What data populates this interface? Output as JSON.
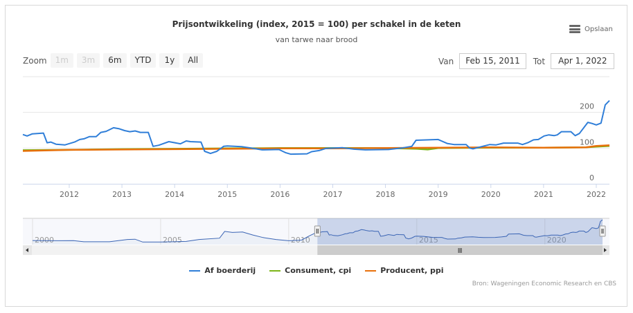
{
  "header": {
    "title": "Prijsontwikkeling (index, 2015 = 100) per schakel in de keten",
    "subtitle": "van tarwe naar brood",
    "save_label": "Opslaan"
  },
  "zoom": {
    "label": "Zoom",
    "buttons": [
      {
        "label": "1m",
        "disabled": true
      },
      {
        "label": "3m",
        "disabled": true
      },
      {
        "label": "6m",
        "disabled": false
      },
      {
        "label": "YTD",
        "disabled": false
      },
      {
        "label": "1y",
        "disabled": false
      },
      {
        "label": "All",
        "disabled": false
      }
    ]
  },
  "range": {
    "from_label": "Van",
    "from_value": "Feb 15, 2011",
    "to_label": "Tot",
    "to_value": "Apr 1, 2022"
  },
  "credits": "Bron: Wageningen Economic Research en CBS",
  "colors": {
    "af_boerderij": "#2f7ed8",
    "consument": "#7cb518",
    "producent": "#e8700b"
  },
  "chart_data": {
    "type": "line",
    "title": "Prijsontwikkeling (index, 2015 = 100) per schakel in de keten",
    "subtitle": "van tarwe naar brood",
    "xlim": [
      2011.12,
      2022.25
    ],
    "ylim": [
      0,
      300
    ],
    "x_ticks": [
      "2012",
      "2013",
      "2014",
      "2015",
      "2016",
      "2017",
      "2018",
      "2019",
      "2020",
      "2021",
      "2022"
    ],
    "y_ticks": [
      "0",
      "100",
      "200"
    ],
    "grid": true,
    "legend_position": "bottom",
    "series": [
      {
        "name": "Af boerderij",
        "color": "#2f7ed8",
        "points": [
          [
            2011.12,
            138
          ],
          [
            2011.2,
            134
          ],
          [
            2011.3,
            140
          ],
          [
            2011.51,
            142
          ],
          [
            2011.58,
            115
          ],
          [
            2011.65,
            117
          ],
          [
            2011.75,
            111
          ],
          [
            2011.92,
            109
          ],
          [
            2012.1,
            117
          ],
          [
            2012.2,
            124
          ],
          [
            2012.28,
            126
          ],
          [
            2012.38,
            132
          ],
          [
            2012.51,
            132
          ],
          [
            2012.6,
            144
          ],
          [
            2012.7,
            147
          ],
          [
            2012.84,
            157
          ],
          [
            2012.95,
            154
          ],
          [
            2013.05,
            149
          ],
          [
            2013.15,
            146
          ],
          [
            2013.25,
            148
          ],
          [
            2013.35,
            144
          ],
          [
            2013.5,
            144
          ],
          [
            2013.59,
            105
          ],
          [
            2013.7,
            108
          ],
          [
            2013.89,
            118
          ],
          [
            2014.11,
            112
          ],
          [
            2014.22,
            120
          ],
          [
            2014.3,
            118
          ],
          [
            2014.5,
            117
          ],
          [
            2014.57,
            91
          ],
          [
            2014.68,
            85
          ],
          [
            2014.8,
            91
          ],
          [
            2014.93,
            105
          ],
          [
            2015.0,
            106
          ],
          [
            2015.27,
            104
          ],
          [
            2015.45,
            100
          ],
          [
            2015.66,
            95
          ],
          [
            2015.98,
            96
          ],
          [
            2016.11,
            87
          ],
          [
            2016.2,
            83
          ],
          [
            2016.51,
            84
          ],
          [
            2016.6,
            90
          ],
          [
            2016.74,
            93
          ],
          [
            2016.87,
            99
          ],
          [
            2017.18,
            101
          ],
          [
            2017.4,
            97
          ],
          [
            2017.62,
            95
          ],
          [
            2018.06,
            96
          ],
          [
            2018.3,
            100
          ],
          [
            2018.5,
            105
          ],
          [
            2018.58,
            122
          ],
          [
            2019.0,
            124
          ],
          [
            2019.17,
            113
          ],
          [
            2019.3,
            110
          ],
          [
            2019.53,
            110
          ],
          [
            2019.6,
            100
          ],
          [
            2019.66,
            98
          ],
          [
            2019.98,
            110
          ],
          [
            2020.1,
            109
          ],
          [
            2020.24,
            114
          ],
          [
            2020.51,
            114
          ],
          [
            2020.6,
            110
          ],
          [
            2020.7,
            115
          ],
          [
            2020.81,
            123
          ],
          [
            2020.9,
            124
          ],
          [
            2021.01,
            134
          ],
          [
            2021.1,
            137
          ],
          [
            2021.2,
            135
          ],
          [
            2021.26,
            137
          ],
          [
            2021.34,
            146
          ],
          [
            2021.52,
            146
          ],
          [
            2021.6,
            135
          ],
          [
            2021.68,
            141
          ],
          [
            2021.84,
            172
          ],
          [
            2021.92,
            169
          ],
          [
            2022.0,
            165
          ],
          [
            2022.09,
            170
          ],
          [
            2022.17,
            221
          ],
          [
            2022.25,
            233
          ]
        ]
      },
      {
        "name": "Consument, cpi",
        "color": "#7cb518",
        "points": [
          [
            2011.12,
            94
          ],
          [
            2012.0,
            95
          ],
          [
            2013.0,
            97
          ],
          [
            2014.0,
            98
          ],
          [
            2015.0,
            99
          ],
          [
            2016.0,
            100
          ],
          [
            2017.0,
            100
          ],
          [
            2018.0,
            100
          ],
          [
            2018.6,
            98
          ],
          [
            2018.8,
            96
          ],
          [
            2019.0,
            100
          ],
          [
            2020.0,
            101
          ],
          [
            2021.0,
            101
          ],
          [
            2021.8,
            102
          ],
          [
            2022.0,
            104
          ],
          [
            2022.25,
            106
          ]
        ]
      },
      {
        "name": "Producent, ppi",
        "color": "#e8700b",
        "points": [
          [
            2011.12,
            92
          ],
          [
            2012.0,
            95
          ],
          [
            2013.0,
            96
          ],
          [
            2014.0,
            97
          ],
          [
            2015.0,
            98
          ],
          [
            2016.0,
            99
          ],
          [
            2017.0,
            99
          ],
          [
            2018.0,
            100
          ],
          [
            2019.0,
            101
          ],
          [
            2020.0,
            102
          ],
          [
            2021.0,
            101
          ],
          [
            2021.8,
            102
          ],
          [
            2022.0,
            106
          ],
          [
            2022.25,
            108
          ]
        ]
      }
    ],
    "navigator": {
      "xlim": [
        2000,
        2022.25
      ],
      "ylim": [
        40,
        245
      ],
      "x_ticks": [
        "2000",
        "2005",
        "2010",
        "2015",
        "2020"
      ],
      "selected_range": [
        2011.12,
        2022.25
      ],
      "points_before_2011": [
        [
          2000,
          72
        ],
        [
          2001,
          70
        ],
        [
          2001.6,
          71
        ],
        [
          2002,
          62
        ],
        [
          2003,
          62
        ],
        [
          2003.7,
          80
        ],
        [
          2004,
          82
        ],
        [
          2004.3,
          60
        ],
        [
          2005,
          60
        ],
        [
          2006,
          65
        ],
        [
          2006.5,
          80
        ],
        [
          2007.3,
          90
        ],
        [
          2007.5,
          143
        ],
        [
          2007.8,
          135
        ],
        [
          2008.2,
          138
        ],
        [
          2008.6,
          115
        ],
        [
          2009,
          95
        ],
        [
          2009.5,
          80
        ],
        [
          2010,
          70
        ],
        [
          2010.5,
          75
        ],
        [
          2010.8,
          108
        ]
      ]
    }
  }
}
